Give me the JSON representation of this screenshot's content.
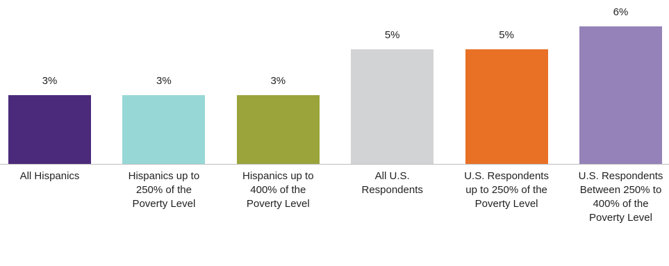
{
  "chart_data": {
    "type": "bar",
    "categories": [
      "All Hispanics",
      "Hispanics up to 250% of the Poverty Level",
      "Hispanics up to 400% of the Poverty Level",
      "All U.S. Respondents",
      "U.S. Respondents up to 250% of the Poverty Level",
      "U.S. Respondents Between 250% to 400% of the Poverty Level"
    ],
    "values": [
      3,
      3,
      3,
      5,
      5,
      6
    ],
    "value_labels": [
      "3%",
      "3%",
      "3%",
      "5%",
      "5%",
      "6%"
    ],
    "colors": [
      "#4b2a7b",
      "#97d8d6",
      "#9aa43a",
      "#d2d3d5",
      "#e87126",
      "#9582b8"
    ]
  }
}
